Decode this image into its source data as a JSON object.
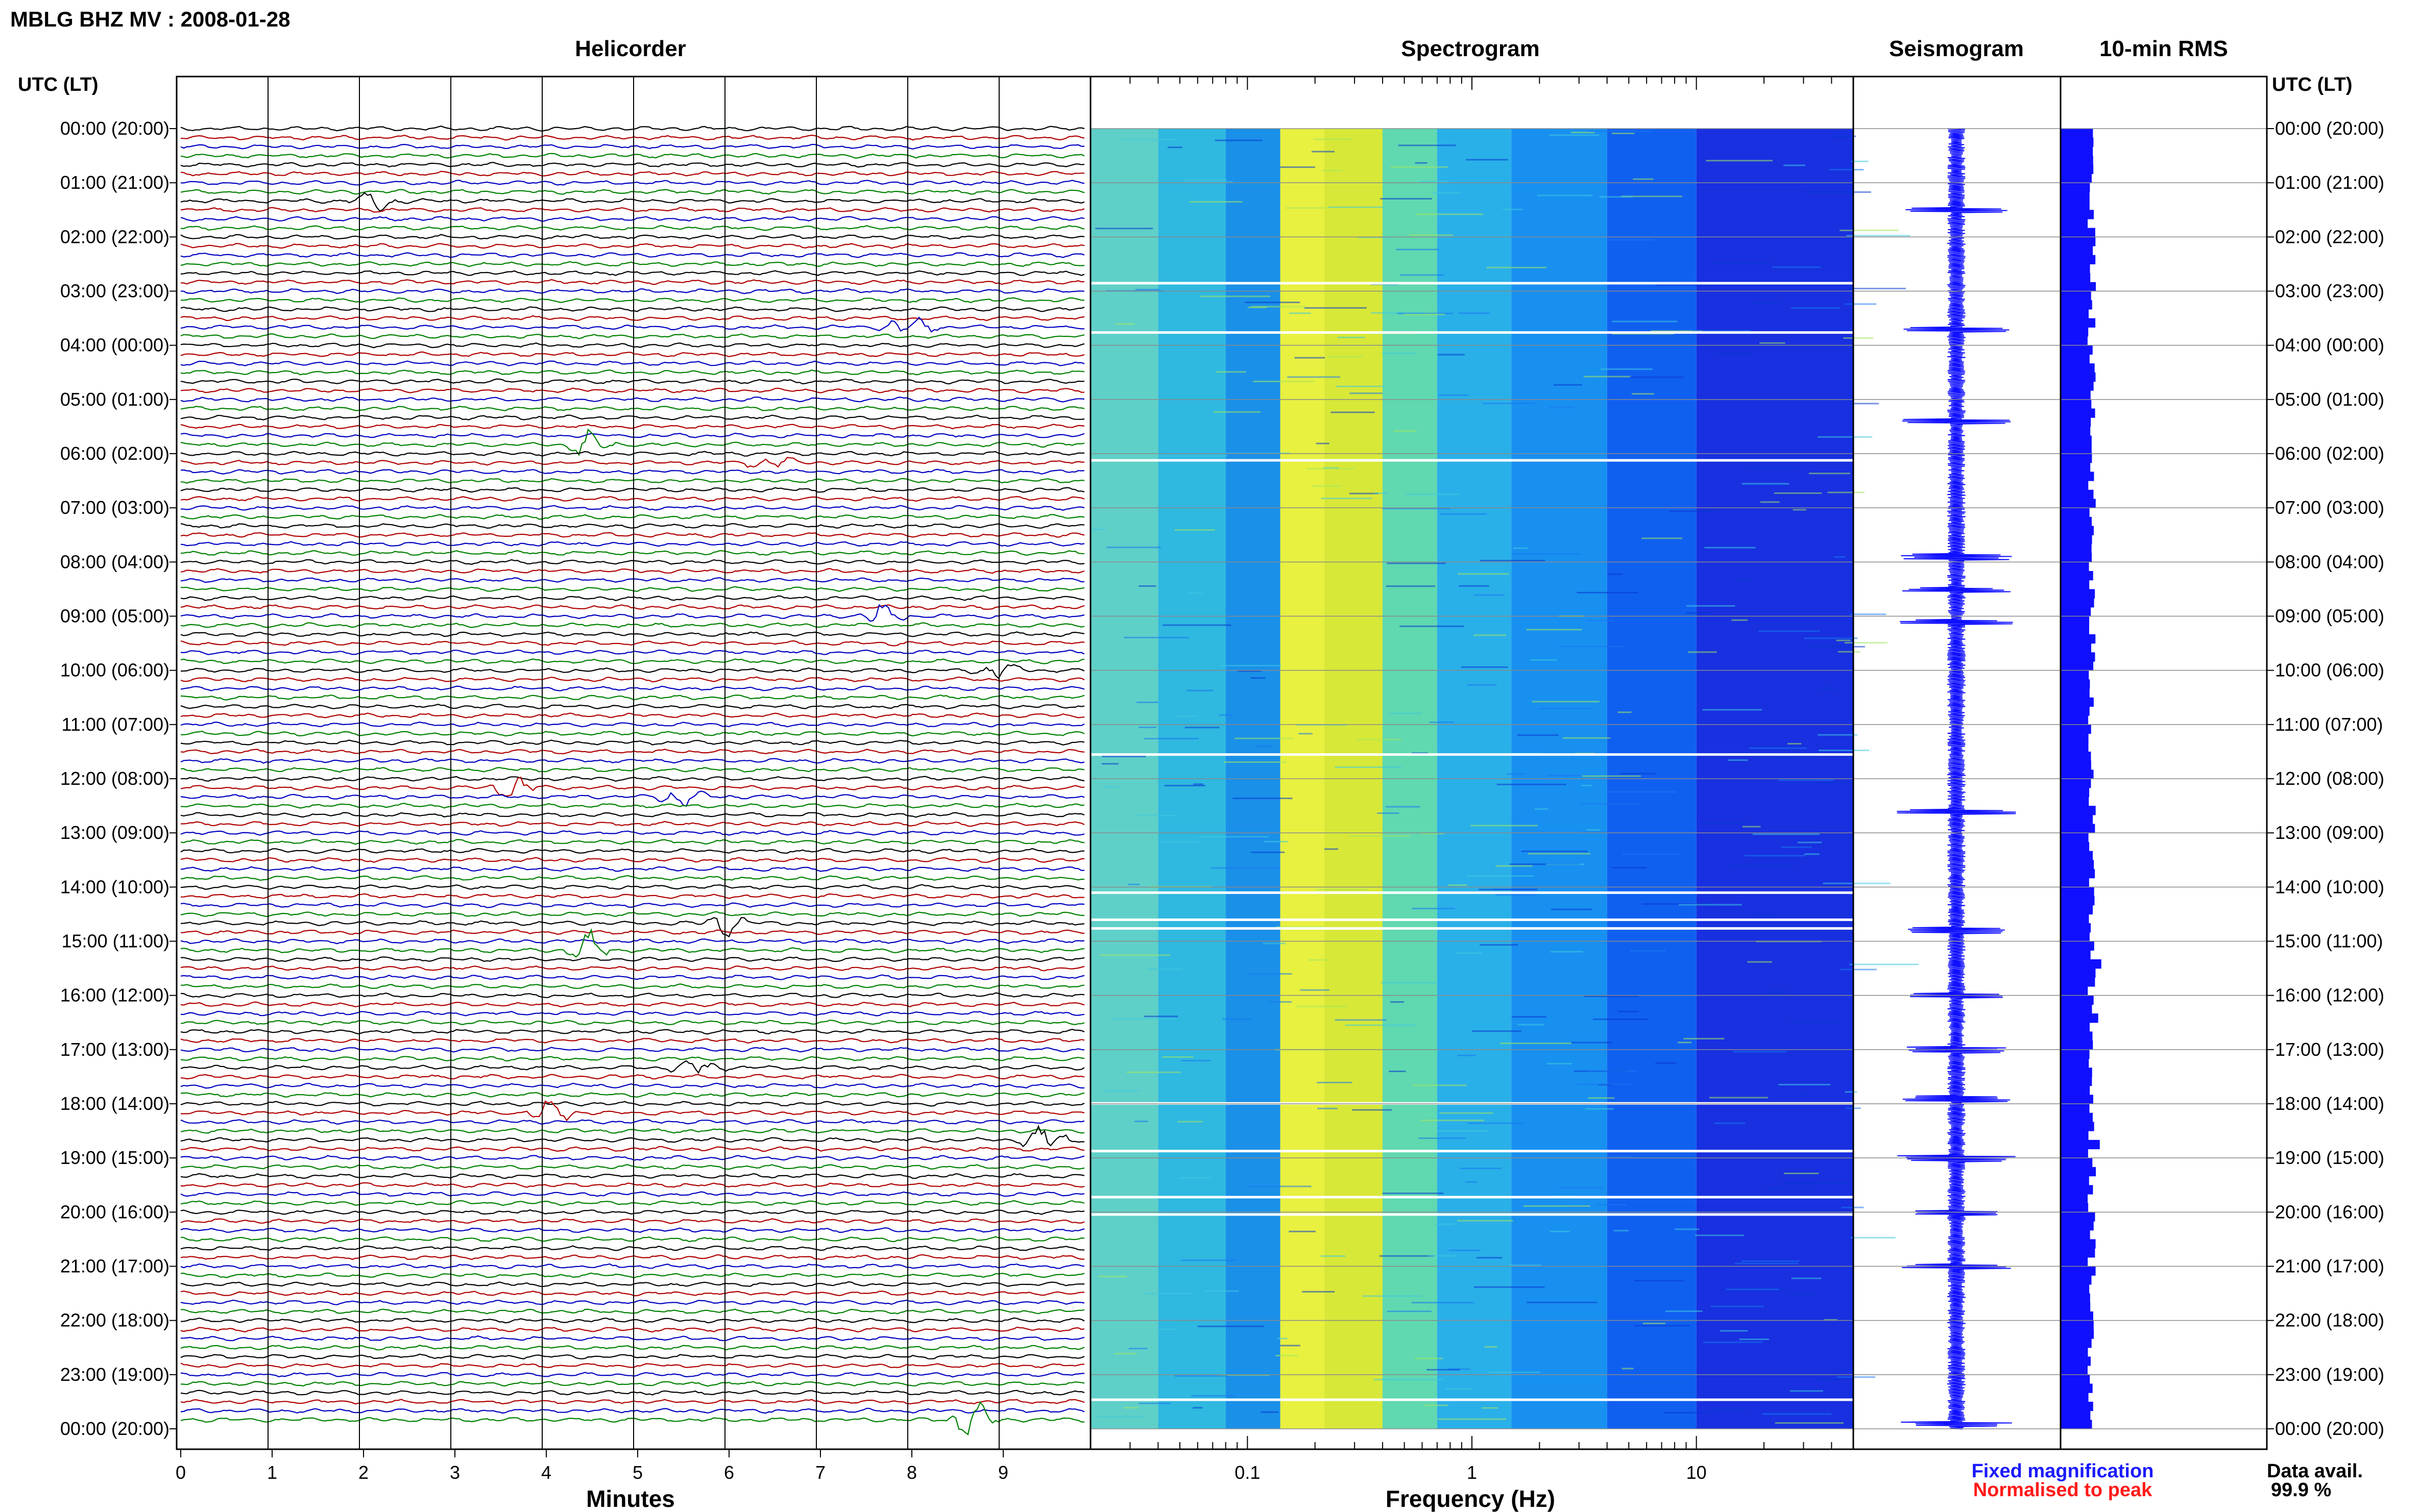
{
  "header": {
    "title": "MBLG BHZ MV : 2008-01-28"
  },
  "panels": {
    "helicorder": "Helicorder",
    "spectrogram": "Spectrogram",
    "seismogram": "Seismogram",
    "rms": "10-min RMS"
  },
  "axes": {
    "time_label_left": "UTC (LT)",
    "time_label_right": "UTC (LT)",
    "time_ticks": [
      "00:00 (20:00)",
      "01:00 (21:00)",
      "02:00 (22:00)",
      "03:00 (23:00)",
      "04:00 (00:00)",
      "05:00 (01:00)",
      "06:00 (02:00)",
      "07:00 (03:00)",
      "08:00 (04:00)",
      "09:00 (05:00)",
      "10:00 (06:00)",
      "11:00 (07:00)",
      "12:00 (08:00)",
      "13:00 (09:00)",
      "14:00 (10:00)",
      "15:00 (11:00)",
      "16:00 (12:00)",
      "17:00 (13:00)",
      "18:00 (14:00)",
      "19:00 (15:00)",
      "20:00 (16:00)",
      "21:00 (17:00)",
      "22:00 (18:00)",
      "23:00 (19:00)",
      "00:00 (20:00)"
    ],
    "minutes_label": "Minutes",
    "minutes_ticks": [
      "0",
      "1",
      "2",
      "3",
      "4",
      "5",
      "6",
      "7",
      "8",
      "9"
    ],
    "frequency_label": "Frequency (Hz)",
    "frequency_ticks": [
      "0.1",
      "1",
      "10"
    ]
  },
  "legend": {
    "fixed": "Fixed magnification",
    "fixed_color": "#1a1aff",
    "normalised": "Normalised to peak",
    "normalised_color": "#ff1a1a"
  },
  "availability": {
    "label": "Data avail.",
    "value": "99.9 %"
  },
  "colors": {
    "trace_cycle": [
      "#000000",
      "#b00000",
      "#0000c0",
      "#008000"
    ],
    "rms_bar": "#1010ff",
    "seismogram": "#1010ff",
    "spectrogram_scale": [
      "#00a0ff",
      "#40e0d0",
      "#ffff00",
      "#ff8000",
      "#0000ff",
      "#00008b"
    ]
  },
  "chart_data": [
    {
      "type": "heatmap",
      "title": "Helicorder",
      "xlabel": "Minutes",
      "xlim": [
        0,
        10
      ],
      "rows_per_hour": 6,
      "hours": 24,
      "events": [
        {
          "row": 8,
          "minute": 2.2,
          "amp": 2.5
        },
        {
          "row": 22,
          "minute": 8.0,
          "amp": 3.2
        },
        {
          "row": 35,
          "minute": 4.5,
          "amp": 3.5
        },
        {
          "row": 37,
          "minute": 6.5,
          "amp": 2.0
        },
        {
          "row": 54,
          "minute": 7.7,
          "amp": 2.8
        },
        {
          "row": 60,
          "minute": 9.0,
          "amp": 2.2
        },
        {
          "row": 73,
          "minute": 3.7,
          "amp": 3.0
        },
        {
          "row": 74,
          "minute": 5.5,
          "amp": 2.5
        },
        {
          "row": 88,
          "minute": 6.0,
          "amp": 3.2
        },
        {
          "row": 91,
          "minute": 4.5,
          "amp": 4.0
        },
        {
          "row": 104,
          "minute": 5.7,
          "amp": 3.0
        },
        {
          "row": 109,
          "minute": 4.1,
          "amp": 3.0
        },
        {
          "row": 112,
          "minute": 9.5,
          "amp": 3.2
        },
        {
          "row": 143,
          "minute": 8.7,
          "amp": 4.5
        }
      ]
    },
    {
      "type": "heatmap",
      "title": "Spectrogram",
      "xlabel": "Frequency (Hz)",
      "xscale": "log",
      "xlim": [
        0.02,
        50
      ],
      "dominant_band_hz": [
        0.15,
        0.4
      ],
      "gaps_utc_hours": [
        2.83,
        3.74,
        6.1,
        11.53,
        14.08,
        14.58,
        14.74,
        17.97,
        18.85,
        19.7,
        20.02,
        23.44
      ]
    },
    {
      "type": "line",
      "title": "Seismogram",
      "ylim": [
        0,
        24
      ],
      "spikes_utc_hours": [
        1.5,
        3.7,
        5.4,
        7.9,
        8.5,
        9.1,
        12.6,
        14.8,
        16.0,
        17.0,
        17.9,
        19.0,
        20.0,
        21.0,
        23.9
      ]
    },
    {
      "type": "bar",
      "title": "10-min RMS",
      "orientation": "horizontal",
      "bins_per_hour": 6,
      "baseline": 0.42,
      "peaks": [
        {
          "bin": 17,
          "value": 0.45
        },
        {
          "bin": 36,
          "value": 0.4
        },
        {
          "bin": 92,
          "value": 0.52
        },
        {
          "bin": 98,
          "value": 0.48
        },
        {
          "bin": 112,
          "value": 0.5
        },
        {
          "bin": 115,
          "value": 0.45
        },
        {
          "bin": 120,
          "value": 0.44
        },
        {
          "bin": 142,
          "value": 0.38
        }
      ]
    }
  ]
}
